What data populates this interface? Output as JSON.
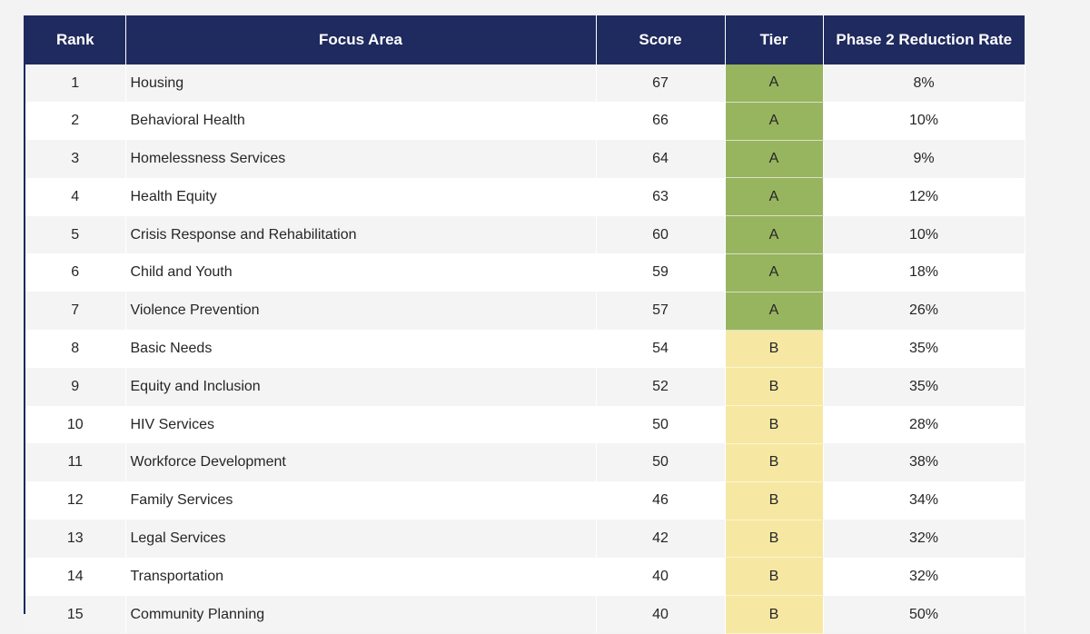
{
  "table": {
    "headers": {
      "rank": "Rank",
      "focus_area": "Focus Area",
      "score": "Score",
      "tier": "Tier",
      "reduction_rate": "Phase 2 Reduction Rate"
    },
    "rows": [
      {
        "rank": "1",
        "focus_area": "Housing",
        "score": "67",
        "tier": "A",
        "reduction_rate": "8%"
      },
      {
        "rank": "2",
        "focus_area": "Behavioral Health",
        "score": "66",
        "tier": "A",
        "reduction_rate": "10%"
      },
      {
        "rank": "3",
        "focus_area": "Homelessness Services",
        "score": "64",
        "tier": "A",
        "reduction_rate": "9%"
      },
      {
        "rank": "4",
        "focus_area": "Health Equity",
        "score": "63",
        "tier": "A",
        "reduction_rate": "12%"
      },
      {
        "rank": "5",
        "focus_area": "Crisis Response and Rehabilitation",
        "score": "60",
        "tier": "A",
        "reduction_rate": "10%"
      },
      {
        "rank": "6",
        "focus_area": "Child and Youth",
        "score": "59",
        "tier": "A",
        "reduction_rate": "18%"
      },
      {
        "rank": "7",
        "focus_area": "Violence Prevention",
        "score": "57",
        "tier": "A",
        "reduction_rate": "26%"
      },
      {
        "rank": "8",
        "focus_area": "Basic Needs",
        "score": "54",
        "tier": "B",
        "reduction_rate": "35%"
      },
      {
        "rank": "9",
        "focus_area": "Equity and Inclusion",
        "score": "52",
        "tier": "B",
        "reduction_rate": "35%"
      },
      {
        "rank": "10",
        "focus_area": "HIV Services",
        "score": "50",
        "tier": "B",
        "reduction_rate": "28%"
      },
      {
        "rank": "11",
        "focus_area": "Workforce Development",
        "score": "50",
        "tier": "B",
        "reduction_rate": "38%"
      },
      {
        "rank": "12",
        "focus_area": "Family Services",
        "score": "46",
        "tier": "B",
        "reduction_rate": "34%"
      },
      {
        "rank": "13",
        "focus_area": "Legal Services",
        "score": "42",
        "tier": "B",
        "reduction_rate": "32%"
      },
      {
        "rank": "14",
        "focus_area": "Transportation",
        "score": "40",
        "tier": "B",
        "reduction_rate": "32%"
      },
      {
        "rank": "15",
        "focus_area": "Community Planning",
        "score": "40",
        "tier": "B",
        "reduction_rate": "50%"
      }
    ]
  },
  "colors": {
    "header_bg": "#1f2a5e",
    "tier_a": "#97b45f",
    "tier_b": "#f6e8a2"
  }
}
